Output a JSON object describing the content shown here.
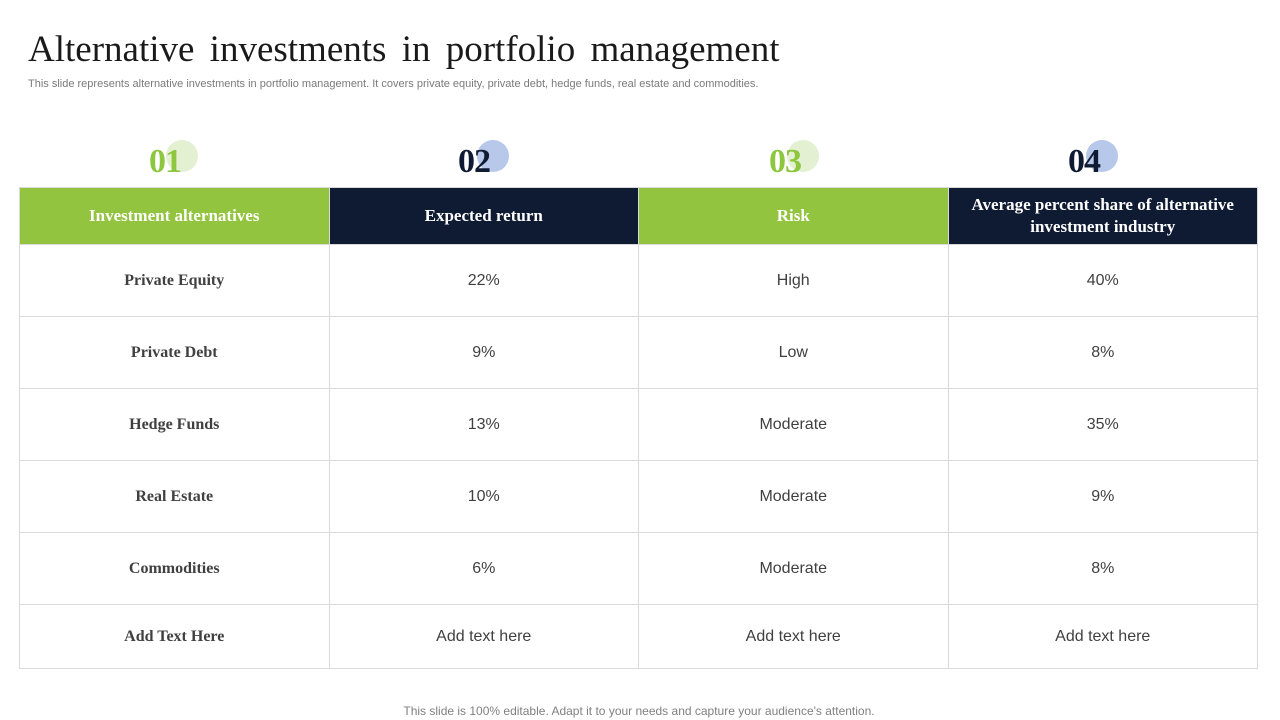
{
  "title": "Alternative investments in portfolio management",
  "subtitle": "This slide represents alternative investments in portfolio management. It covers private equity, private debt, hedge funds, real estate and commodities.",
  "numbers": [
    "01",
    "02",
    "03",
    "04"
  ],
  "colors": {
    "green": "#93c43f",
    "navy": "#0f1a33",
    "light_green": "#e4f0d2",
    "light_blue": "#b7c8ea"
  },
  "table": {
    "headers": [
      "Investment alternatives",
      "Expected return",
      "Risk",
      "Average percent share of alternative investment industry"
    ],
    "rows": [
      [
        "Private Equity",
        "22%",
        "High",
        "40%"
      ],
      [
        "Private Debt",
        "9%",
        "Low",
        "8%"
      ],
      [
        "Hedge Funds",
        "13%",
        "Moderate",
        "35%"
      ],
      [
        "Real Estate",
        "10%",
        "Moderate",
        "9%"
      ],
      [
        "Commodities",
        "6%",
        "Moderate",
        "8%"
      ],
      [
        "Add Text Here",
        "Add text here",
        "Add text here",
        "Add text here"
      ]
    ]
  },
  "footer": "This slide is 100% editable. Adapt it to your needs and capture your audience's attention."
}
